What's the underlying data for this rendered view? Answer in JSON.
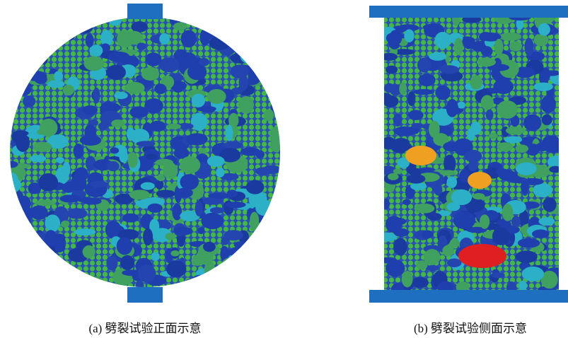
{
  "figure": {
    "panels": [
      {
        "caption": "(a) 劈裂试验正面示意"
      },
      {
        "caption": "(b) 劈裂试验侧面示意"
      }
    ]
  }
}
